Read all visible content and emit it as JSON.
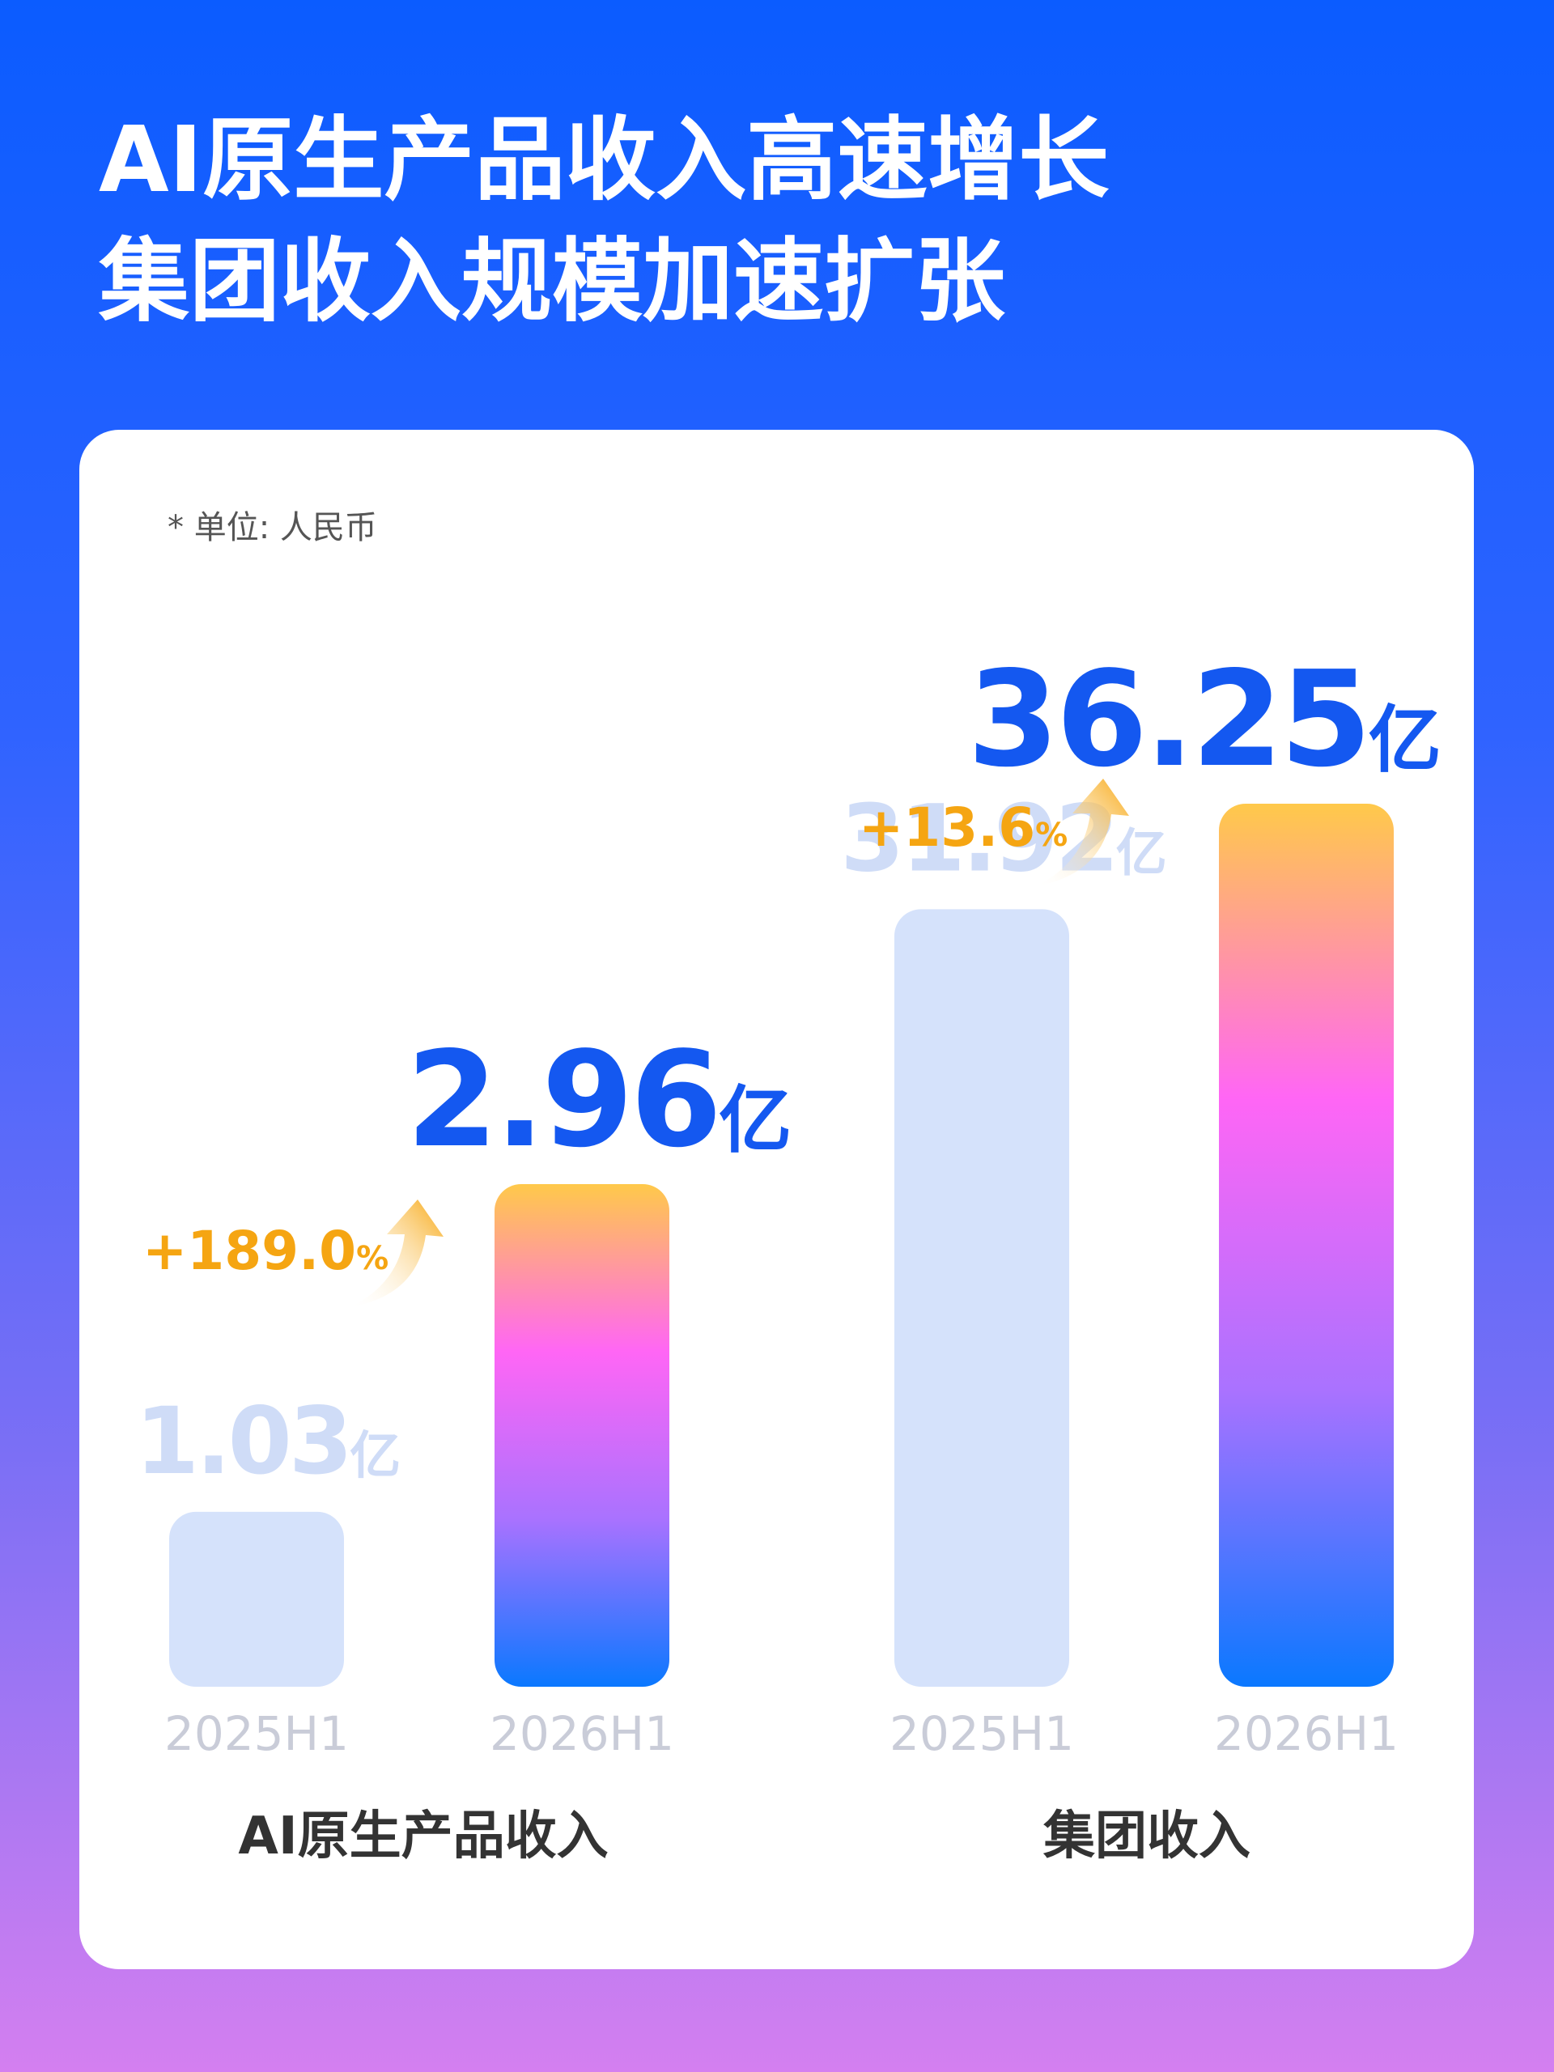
{
  "header": {
    "title_lines": [
      "AI原生产品收入高速增长",
      "集团收入规模加速扩张"
    ]
  },
  "note": "* 单位: 人民币",
  "chart_data": [
    {
      "type": "bar",
      "title": "AI原生产品收入",
      "categories": [
        "2025H1",
        "2026H1"
      ],
      "values": [
        1.03,
        2.96
      ],
      "value_labels": [
        "1.03亿",
        "2.96亿"
      ],
      "annotation": "+189.0%",
      "ylim": [
        0,
        5.2
      ],
      "colors": [
        "#d5e2fb",
        [
          "#ffc94a",
          "#ff66f5",
          "#a972ff",
          "#0a78ff"
        ]
      ]
    },
    {
      "type": "bar",
      "title": "集团收入",
      "categories": [
        "2025H1",
        "2026H1"
      ],
      "values": [
        31.92,
        36.25
      ],
      "value_labels": [
        "31.92亿",
        "36.25亿"
      ],
      "annotation": "+13.6%",
      "ylim": [
        0,
        36.25
      ],
      "colors": [
        "#d5e2fb",
        [
          "#ffc94a",
          "#ff66f5",
          "#a972ff",
          "#0a78ff"
        ]
      ]
    }
  ]
}
